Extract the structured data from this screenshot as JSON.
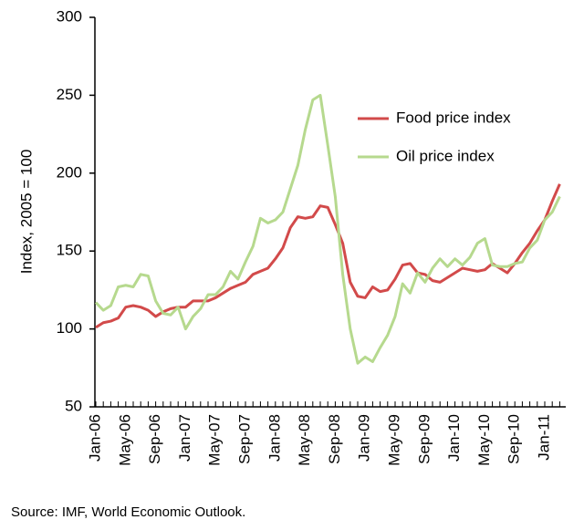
{
  "chart_data": {
    "type": "line",
    "y_label": "Index, 2005 = 100",
    "source": "Source: IMF, World Economic Outlook.",
    "categories": [
      "Jan-06",
      null,
      null,
      null,
      "May-06",
      null,
      null,
      null,
      "Sep-06",
      null,
      null,
      null,
      "Jan-07",
      null,
      null,
      null,
      "May-07",
      null,
      null,
      null,
      "Sep-07",
      null,
      null,
      null,
      "Jan-08",
      null,
      null,
      null,
      "May-08",
      null,
      null,
      null,
      "Sep-08",
      null,
      null,
      null,
      "Jan-09",
      null,
      null,
      null,
      "May-09",
      null,
      null,
      null,
      "Sep-09",
      null,
      null,
      null,
      "Jan-10",
      null,
      null,
      null,
      "May-10",
      null,
      null,
      null,
      "Sep-10",
      null,
      null,
      null,
      "Jan-11",
      null,
      null
    ],
    "series": [
      {
        "name": "Food price index",
        "color": "#d24a4a",
        "values": [
          101,
          104,
          105,
          107,
          114,
          115,
          114,
          112,
          108,
          111,
          113,
          114,
          114,
          118,
          118,
          118,
          120,
          123,
          126,
          128,
          130,
          135,
          137,
          139,
          145,
          152,
          165,
          172,
          171,
          172,
          179,
          178,
          167,
          155,
          130,
          121,
          120,
          127,
          124,
          125,
          132,
          141,
          142,
          136,
          135,
          131,
          130,
          133,
          136,
          139,
          138,
          137,
          138,
          142,
          139,
          136,
          142,
          149,
          155,
          163,
          170,
          182,
          193
        ]
      },
      {
        "name": "Oil price index",
        "color": "#b6d98e",
        "values": [
          117,
          112,
          115,
          127,
          128,
          127,
          135,
          134,
          118,
          110,
          109,
          114,
          100,
          108,
          113,
          122,
          122,
          127,
          137,
          132,
          143,
          153,
          171,
          168,
          170,
          175,
          190,
          205,
          228,
          247,
          250,
          218,
          185,
          135,
          100,
          78,
          82,
          79,
          88,
          96,
          108,
          129,
          123,
          136,
          130,
          139,
          145,
          140,
          145,
          141,
          146,
          155,
          158,
          141,
          140,
          140,
          142,
          143,
          152,
          157,
          170,
          175,
          185
        ]
      }
    ],
    "ylim": [
      50,
      300
    ],
    "yticks": [
      50,
      100,
      150,
      200,
      250,
      300
    ],
    "legend": "upper-right"
  }
}
